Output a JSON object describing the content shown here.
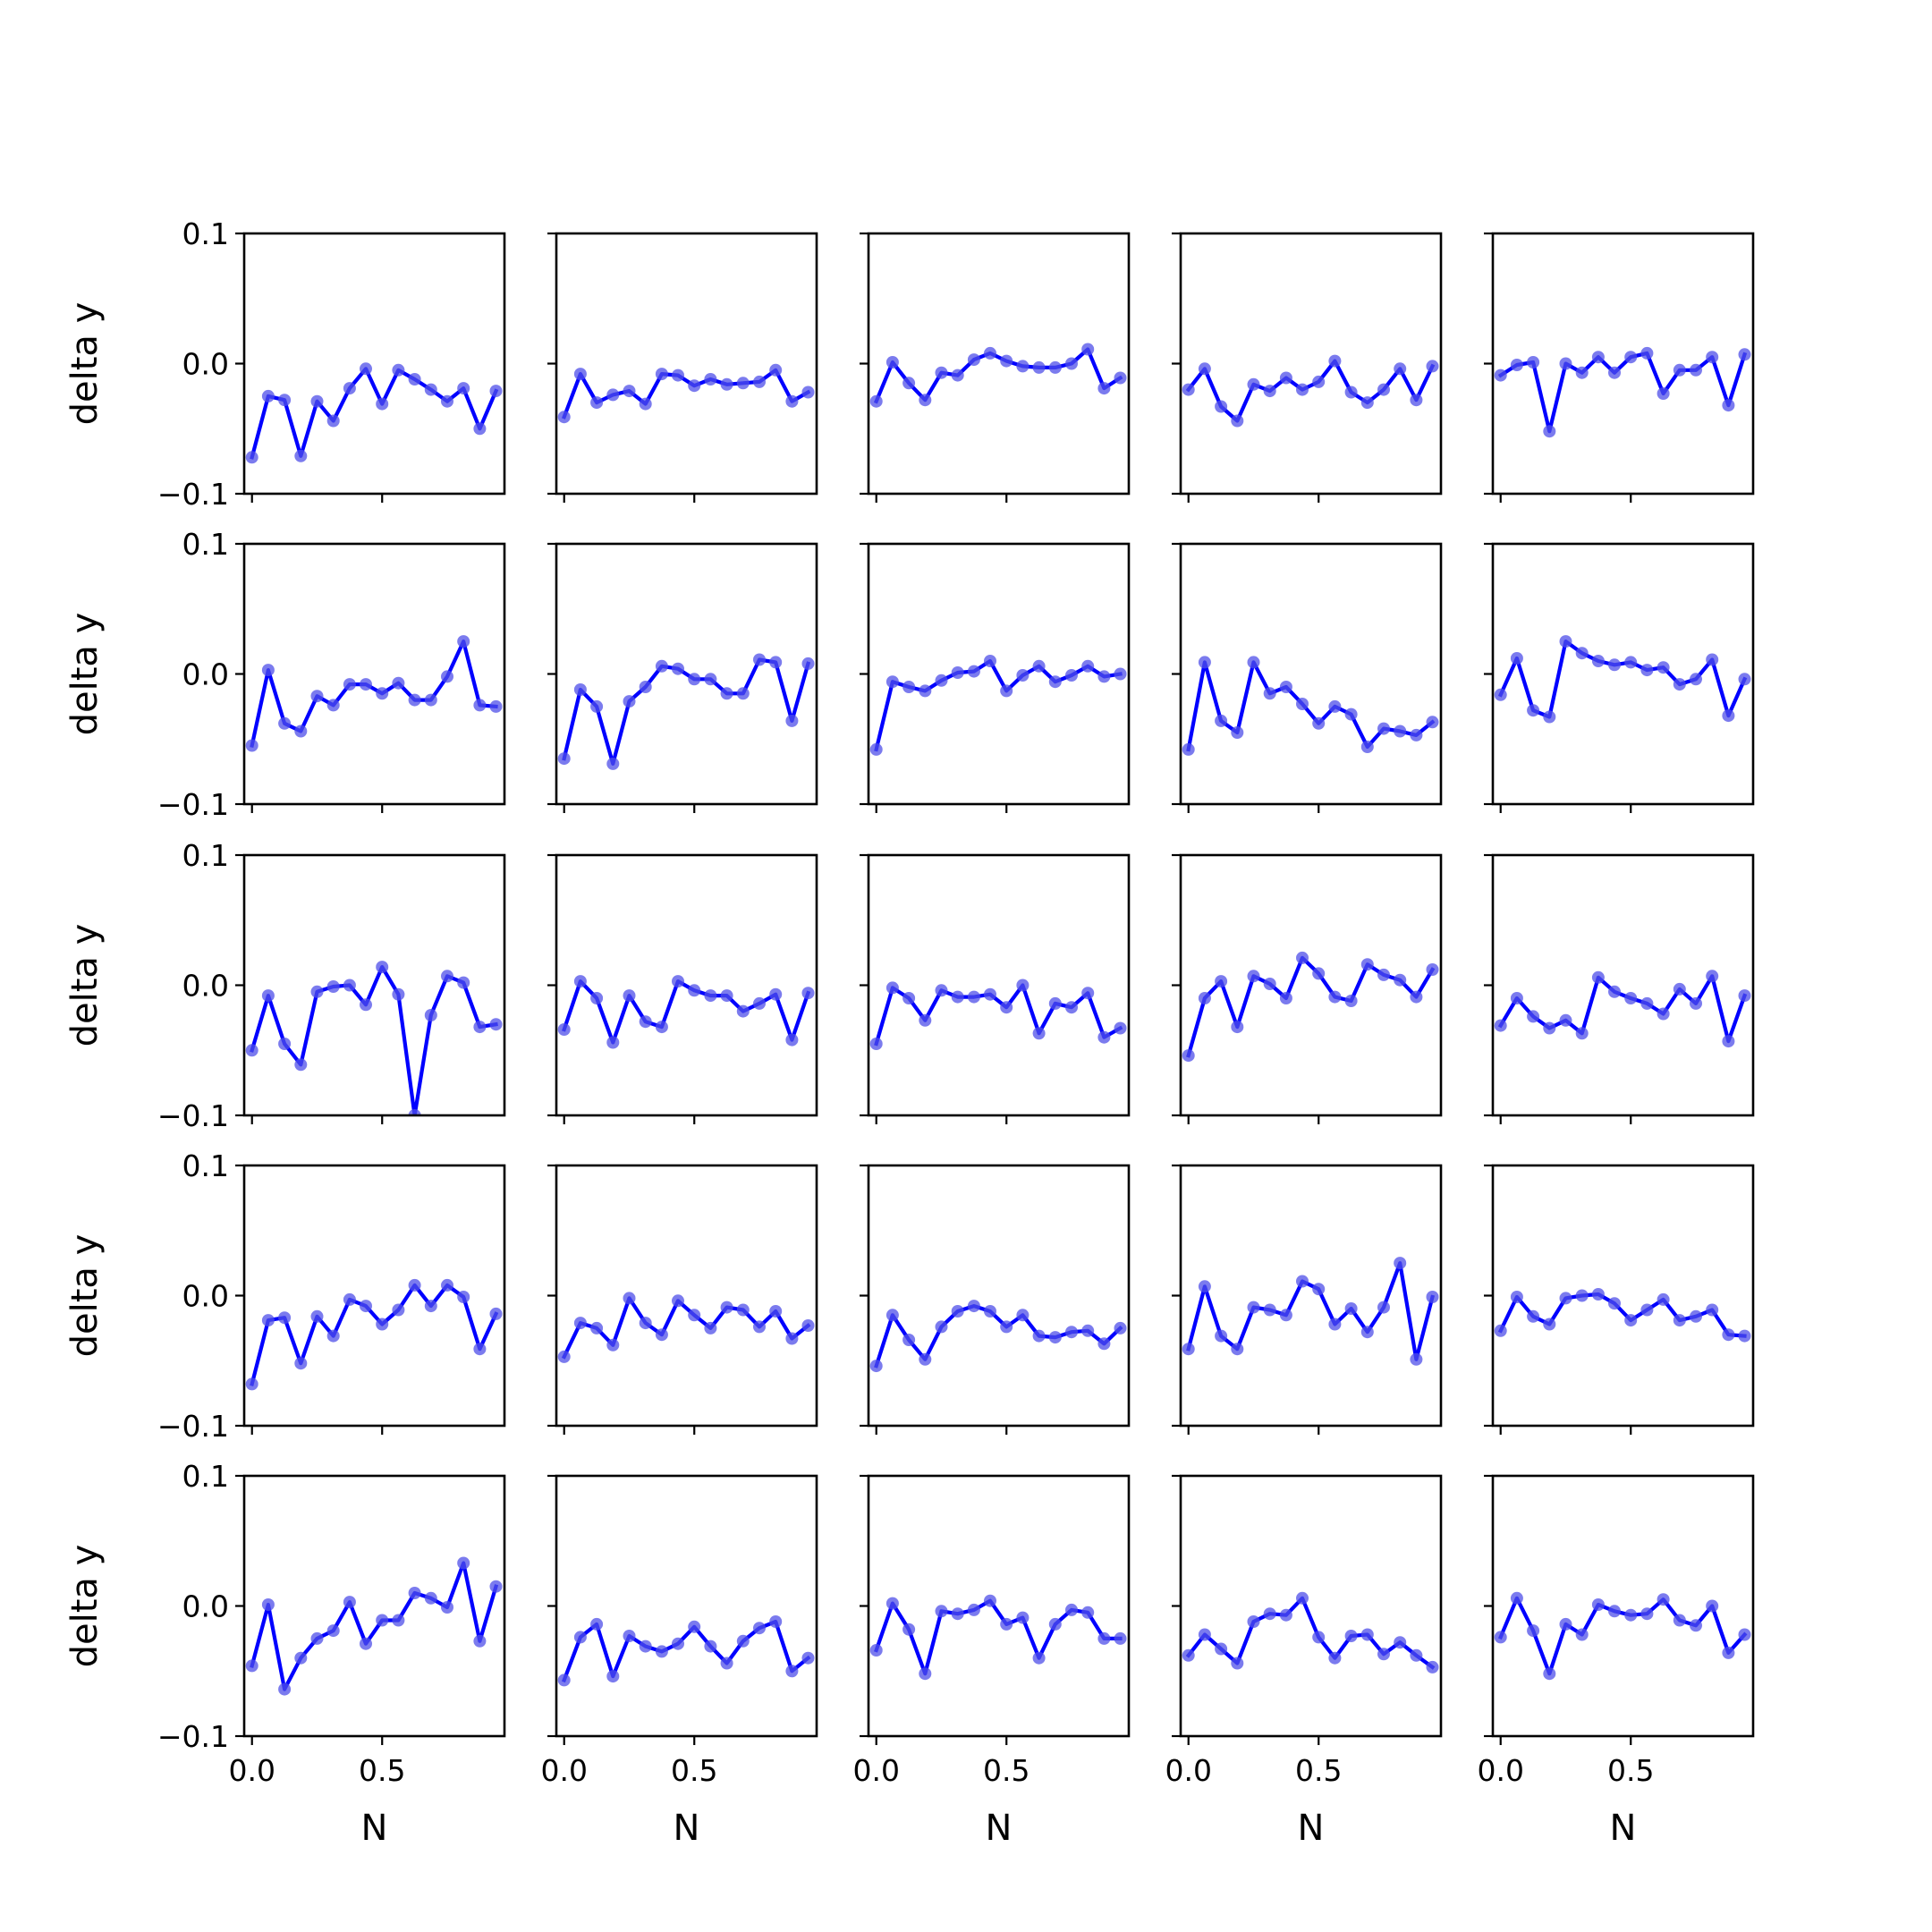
{
  "chart_data": {
    "type": "line",
    "layout": "5x5 grid of small multiples",
    "xlabel": "N",
    "ylabel": "delta y",
    "ylim": [
      -0.1,
      0.1
    ],
    "xlim": [
      -0.03,
      0.97
    ],
    "xticks": [
      0.0,
      0.5
    ],
    "xtick_labels": [
      "0.0",
      "0.5"
    ],
    "yticks": [
      -0.1,
      0.0,
      0.1
    ],
    "ytick_labels": [
      "−0.1",
      "0.0",
      "0.1"
    ],
    "x": [
      0.0,
      0.0625,
      0.125,
      0.1875,
      0.25,
      0.3125,
      0.375,
      0.4375,
      0.5,
      0.5625,
      0.625,
      0.6875,
      0.75,
      0.8125,
      0.875,
      0.9375
    ],
    "line_color": "#0000ff",
    "marker_color": "#4f4fe8",
    "grid": false,
    "panels": [
      {
        "row": 1,
        "col": 1,
        "values": [
          -0.072,
          -0.025,
          -0.028,
          -0.071,
          -0.029,
          -0.044,
          -0.019,
          -0.004,
          -0.031,
          -0.005,
          -0.012,
          -0.02,
          -0.029,
          -0.019,
          -0.05,
          -0.021
        ]
      },
      {
        "row": 1,
        "col": 2,
        "values": [
          -0.041,
          -0.008,
          -0.03,
          -0.024,
          -0.021,
          -0.031,
          -0.008,
          -0.009,
          -0.017,
          -0.012,
          -0.016,
          -0.015,
          -0.014,
          -0.005,
          -0.029,
          -0.022
        ]
      },
      {
        "row": 1,
        "col": 3,
        "values": [
          -0.029,
          0.001,
          -0.015,
          -0.028,
          -0.007,
          -0.009,
          0.003,
          0.008,
          0.002,
          -0.002,
          -0.003,
          -0.003,
          0.0,
          0.011,
          -0.019,
          -0.011
        ]
      },
      {
        "row": 1,
        "col": 4,
        "values": [
          -0.02,
          -0.004,
          -0.033,
          -0.044,
          -0.016,
          -0.021,
          -0.011,
          -0.02,
          -0.014,
          0.002,
          -0.022,
          -0.03,
          -0.02,
          -0.004,
          -0.028,
          -0.002
        ]
      },
      {
        "row": 1,
        "col": 5,
        "values": [
          -0.009,
          -0.001,
          0.001,
          -0.052,
          0.0,
          -0.007,
          0.005,
          -0.007,
          0.005,
          0.008,
          -0.023,
          -0.005,
          -0.005,
          0.005,
          -0.032,
          0.007
        ]
      },
      {
        "row": 2,
        "col": 1,
        "values": [
          -0.055,
          0.003,
          -0.038,
          -0.044,
          -0.017,
          -0.024,
          -0.008,
          -0.008,
          -0.015,
          -0.007,
          -0.02,
          -0.02,
          -0.002,
          0.025,
          -0.024,
          -0.025
        ]
      },
      {
        "row": 2,
        "col": 2,
        "values": [
          -0.065,
          -0.012,
          -0.025,
          -0.069,
          -0.021,
          -0.01,
          0.006,
          0.004,
          -0.004,
          -0.004,
          -0.015,
          -0.015,
          0.011,
          0.009,
          -0.036,
          0.008
        ]
      },
      {
        "row": 2,
        "col": 3,
        "values": [
          -0.058,
          -0.006,
          -0.01,
          -0.013,
          -0.005,
          0.001,
          0.002,
          0.01,
          -0.013,
          -0.001,
          0.006,
          -0.006,
          -0.001,
          0.006,
          -0.002,
          0.0
        ]
      },
      {
        "row": 2,
        "col": 4,
        "values": [
          -0.058,
          0.009,
          -0.036,
          -0.045,
          0.009,
          -0.015,
          -0.01,
          -0.023,
          -0.038,
          -0.025,
          -0.031,
          -0.056,
          -0.042,
          -0.044,
          -0.047,
          -0.037
        ]
      },
      {
        "row": 2,
        "col": 5,
        "values": [
          -0.016,
          0.012,
          -0.028,
          -0.033,
          0.025,
          0.016,
          0.01,
          0.007,
          0.009,
          0.003,
          0.005,
          -0.008,
          -0.004,
          0.011,
          -0.032,
          -0.004
        ]
      },
      {
        "row": 3,
        "col": 1,
        "values": [
          -0.05,
          -0.008,
          -0.045,
          -0.061,
          -0.005,
          -0.001,
          0.0,
          -0.015,
          0.014,
          -0.007,
          -0.1,
          -0.023,
          0.007,
          0.002,
          -0.032,
          -0.03
        ]
      },
      {
        "row": 3,
        "col": 2,
        "values": [
          -0.034,
          0.003,
          -0.01,
          -0.044,
          -0.008,
          -0.028,
          -0.032,
          0.003,
          -0.004,
          -0.008,
          -0.008,
          -0.02,
          -0.014,
          -0.007,
          -0.042,
          -0.006
        ]
      },
      {
        "row": 3,
        "col": 3,
        "values": [
          -0.045,
          -0.002,
          -0.01,
          -0.027,
          -0.004,
          -0.009,
          -0.009,
          -0.007,
          -0.017,
          0.0,
          -0.037,
          -0.014,
          -0.017,
          -0.006,
          -0.04,
          -0.033
        ]
      },
      {
        "row": 3,
        "col": 4,
        "values": [
          -0.054,
          -0.01,
          0.003,
          -0.032,
          0.007,
          0.001,
          -0.01,
          0.021,
          0.009,
          -0.009,
          -0.012,
          0.016,
          0.008,
          0.004,
          -0.009,
          0.012
        ]
      },
      {
        "row": 3,
        "col": 5,
        "values": [
          -0.031,
          -0.01,
          -0.024,
          -0.033,
          -0.027,
          -0.037,
          0.006,
          -0.005,
          -0.01,
          -0.014,
          -0.022,
          -0.003,
          -0.014,
          0.007,
          -0.043,
          -0.008
        ]
      },
      {
        "row": 4,
        "col": 1,
        "values": [
          -0.068,
          -0.019,
          -0.017,
          -0.052,
          -0.016,
          -0.031,
          -0.003,
          -0.008,
          -0.022,
          -0.011,
          0.008,
          -0.008,
          0.008,
          -0.001,
          -0.041,
          -0.014
        ]
      },
      {
        "row": 4,
        "col": 2,
        "values": [
          -0.047,
          -0.021,
          -0.025,
          -0.038,
          -0.002,
          -0.021,
          -0.03,
          -0.004,
          -0.015,
          -0.025,
          -0.009,
          -0.011,
          -0.024,
          -0.012,
          -0.033,
          -0.023
        ]
      },
      {
        "row": 4,
        "col": 3,
        "values": [
          -0.054,
          -0.015,
          -0.034,
          -0.049,
          -0.024,
          -0.012,
          -0.008,
          -0.012,
          -0.024,
          -0.015,
          -0.031,
          -0.032,
          -0.028,
          -0.027,
          -0.037,
          -0.025
        ]
      },
      {
        "row": 4,
        "col": 4,
        "values": [
          -0.041,
          0.007,
          -0.031,
          -0.041,
          -0.009,
          -0.011,
          -0.015,
          0.011,
          0.005,
          -0.022,
          -0.01,
          -0.028,
          -0.009,
          0.025,
          -0.049,
          -0.001
        ]
      },
      {
        "row": 4,
        "col": 5,
        "values": [
          -0.027,
          -0.001,
          -0.016,
          -0.022,
          -0.002,
          0.0,
          0.001,
          -0.006,
          -0.019,
          -0.011,
          -0.003,
          -0.019,
          -0.016,
          -0.011,
          -0.03,
          -0.031
        ]
      },
      {
        "row": 5,
        "col": 1,
        "values": [
          -0.046,
          0.001,
          -0.064,
          -0.04,
          -0.025,
          -0.019,
          0.003,
          -0.029,
          -0.011,
          -0.011,
          0.01,
          0.006,
          -0.001,
          0.033,
          -0.027,
          0.015
        ]
      },
      {
        "row": 5,
        "col": 2,
        "values": [
          -0.057,
          -0.024,
          -0.014,
          -0.054,
          -0.023,
          -0.031,
          -0.035,
          -0.029,
          -0.016,
          -0.031,
          -0.044,
          -0.027,
          -0.017,
          -0.012,
          -0.05,
          -0.04
        ]
      },
      {
        "row": 5,
        "col": 3,
        "values": [
          -0.034,
          0.002,
          -0.018,
          -0.052,
          -0.004,
          -0.006,
          -0.003,
          0.004,
          -0.014,
          -0.009,
          -0.04,
          -0.014,
          -0.003,
          -0.005,
          -0.025,
          -0.025
        ]
      },
      {
        "row": 5,
        "col": 4,
        "values": [
          -0.038,
          -0.022,
          -0.033,
          -0.044,
          -0.012,
          -0.006,
          -0.007,
          0.006,
          -0.024,
          -0.04,
          -0.023,
          -0.022,
          -0.037,
          -0.028,
          -0.038,
          -0.047
        ]
      },
      {
        "row": 5,
        "col": 5,
        "values": [
          -0.024,
          0.006,
          -0.019,
          -0.052,
          -0.014,
          -0.022,
          0.001,
          -0.004,
          -0.007,
          -0.006,
          0.005,
          -0.011,
          -0.015,
          0.0,
          -0.036,
          -0.022
        ]
      }
    ]
  }
}
